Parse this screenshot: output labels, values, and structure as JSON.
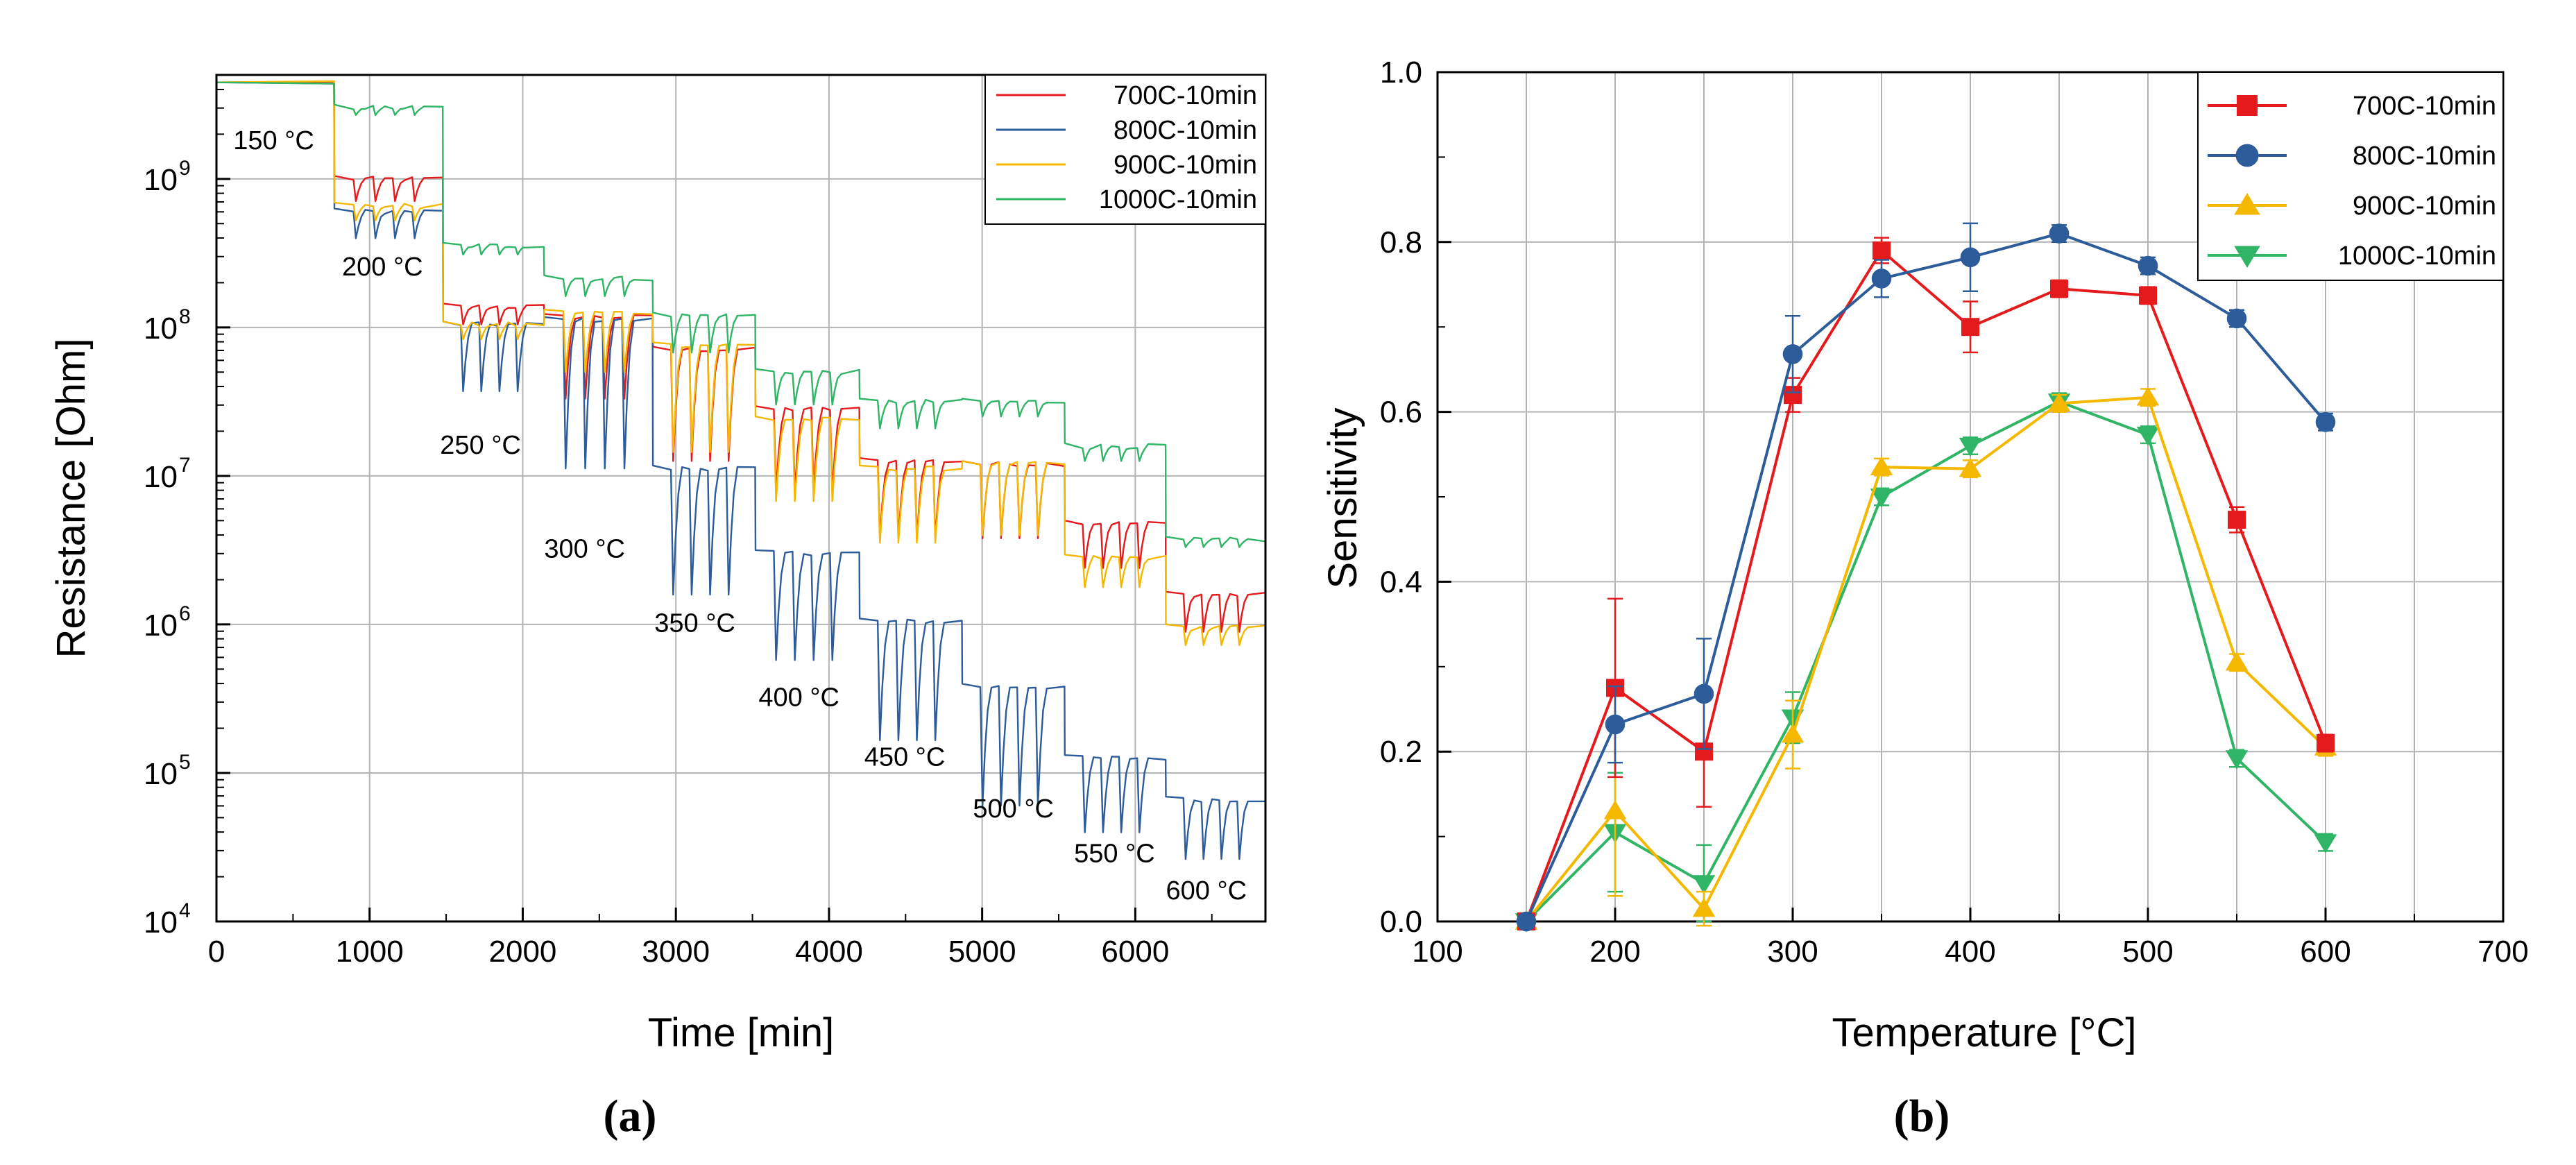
{
  "colors": {
    "c700": "#e41a1c",
    "c800": "#2d5c9a",
    "c900": "#f5b800",
    "c1000": "#2fb565",
    "grid": "#b4b4b4",
    "axis": "#000000"
  },
  "chart_data": [
    {
      "type": "line",
      "panel": "(a)",
      "xlabel": "Time [min]",
      "ylabel": "Resistance [Ohm]",
      "xlim": [
        0,
        6850
      ],
      "ylim_log10": [
        4,
        9.7
      ],
      "yscale": "log",
      "xticks": [
        0,
        1000,
        2000,
        3000,
        4000,
        5000,
        6000
      ],
      "xtick_labels": [
        "0",
        "1000",
        "2000",
        "3000",
        "4000",
        "5000",
        "6000"
      ],
      "yticks": [
        4,
        5,
        6,
        7,
        8,
        9
      ],
      "ytick_labels": [
        {
          "base": "10",
          "exp": "4"
        },
        {
          "base": "10",
          "exp": "5"
        },
        {
          "base": "10",
          "exp": "6"
        },
        {
          "base": "10",
          "exp": "7"
        },
        {
          "base": "10",
          "exp": "8"
        },
        {
          "base": "10",
          "exp": "9"
        }
      ],
      "legend_position": "top-right",
      "annotations": [
        {
          "text": "150 °C",
          "x": 110,
          "y": 9.2
        },
        {
          "text": "200 °C",
          "x": 820,
          "y": 8.35
        },
        {
          "text": "250 °C",
          "x": 1460,
          "y": 7.15
        },
        {
          "text": "300 °C",
          "x": 2140,
          "y": 6.45
        },
        {
          "text": "350 °C",
          "x": 2860,
          "y": 5.95
        },
        {
          "text": "400 °C",
          "x": 3540,
          "y": 5.45
        },
        {
          "text": "450 °C",
          "x": 4230,
          "y": 5.05
        },
        {
          "text": "500 °C",
          "x": 4940,
          "y": 4.7
        },
        {
          "text": "550 °C",
          "x": 5600,
          "y": 4.4
        },
        {
          "text": "600 °C",
          "x": 6200,
          "y": 4.15
        }
      ],
      "series": [
        {
          "name": "700C-10min",
          "color_key": "c700",
          "steps": [
            {
              "x0": 0,
              "x1": 770,
              "b": 9.65,
              "d": 0
            },
            {
              "x0": 770,
              "x1": 1480,
              "b": 9.0,
              "d": 0.15
            },
            {
              "x0": 1480,
              "x1": 2140,
              "b": 8.14,
              "d": 0.12
            },
            {
              "x0": 2140,
              "x1": 2850,
              "b": 8.07,
              "d": 0.55
            },
            {
              "x0": 2850,
              "x1": 3520,
              "b": 7.85,
              "d": 0.75
            },
            {
              "x0": 3520,
              "x1": 4200,
              "b": 7.45,
              "d": 0.55
            },
            {
              "x0": 4200,
              "x1": 4870,
              "b": 7.1,
              "d": 0.52
            },
            {
              "x0": 4870,
              "x1": 5540,
              "b": 7.08,
              "d": 0.5
            },
            {
              "x0": 5540,
              "x1": 6200,
              "b": 6.68,
              "d": 0.3
            },
            {
              "x0": 6200,
              "x1": 6850,
              "b": 6.2,
              "d": 0.25
            }
          ]
        },
        {
          "name": "800C-10min",
          "color_key": "c800",
          "steps": [
            {
              "x0": 0,
              "x1": 770,
              "b": 9.65,
              "d": 0
            },
            {
              "x0": 770,
              "x1": 1480,
              "b": 8.78,
              "d": 0.18
            },
            {
              "x0": 1480,
              "x1": 2140,
              "b": 8.02,
              "d": 0.45
            },
            {
              "x0": 2140,
              "x1": 2850,
              "b": 8.05,
              "d": 1.0
            },
            {
              "x0": 2850,
              "x1": 3520,
              "b": 7.05,
              "d": 0.85
            },
            {
              "x0": 3520,
              "x1": 4200,
              "b": 6.48,
              "d": 0.72
            },
            {
              "x0": 4200,
              "x1": 4870,
              "b": 6.02,
              "d": 0.8
            },
            {
              "x0": 4870,
              "x1": 5540,
              "b": 5.58,
              "d": 0.8
            },
            {
              "x0": 5540,
              "x1": 6200,
              "b": 5.1,
              "d": 0.5
            },
            {
              "x0": 6200,
              "x1": 6850,
              "b": 4.82,
              "d": 0.4
            }
          ]
        },
        {
          "name": "900C-10min",
          "color_key": "c900",
          "steps": [
            {
              "x0": 0,
              "x1": 770,
              "b": 9.65,
              "d": 0
            },
            {
              "x0": 770,
              "x1": 1480,
              "b": 8.82,
              "d": 0.1
            },
            {
              "x0": 1480,
              "x1": 2140,
              "b": 8.02,
              "d": 0.1
            },
            {
              "x0": 2140,
              "x1": 2850,
              "b": 8.1,
              "d": 0.4
            },
            {
              "x0": 2850,
              "x1": 3520,
              "b": 7.88,
              "d": 0.72
            },
            {
              "x0": 3520,
              "x1": 4200,
              "b": 7.38,
              "d": 0.55
            },
            {
              "x0": 4200,
              "x1": 4870,
              "b": 7.05,
              "d": 0.5
            },
            {
              "x0": 4870,
              "x1": 5540,
              "b": 7.08,
              "d": 0.48
            },
            {
              "x0": 5540,
              "x1": 6200,
              "b": 6.45,
              "d": 0.2
            },
            {
              "x0": 6200,
              "x1": 6850,
              "b": 5.98,
              "d": 0.12
            }
          ]
        },
        {
          "name": "1000C-10min",
          "color_key": "c1000",
          "steps": [
            {
              "x0": 0,
              "x1": 770,
              "b": 9.65,
              "d": 0
            },
            {
              "x0": 770,
              "x1": 1480,
              "b": 9.48,
              "d": 0.05
            },
            {
              "x0": 1480,
              "x1": 2140,
              "b": 8.55,
              "d": 0.06
            },
            {
              "x0": 2140,
              "x1": 2850,
              "b": 8.33,
              "d": 0.12
            },
            {
              "x0": 2850,
              "x1": 3520,
              "b": 8.08,
              "d": 0.25
            },
            {
              "x0": 3520,
              "x1": 4200,
              "b": 7.7,
              "d": 0.22
            },
            {
              "x0": 4200,
              "x1": 4870,
              "b": 7.5,
              "d": 0.18
            },
            {
              "x0": 4870,
              "x1": 5540,
              "b": 7.5,
              "d": 0.1
            },
            {
              "x0": 5540,
              "x1": 6200,
              "b": 7.2,
              "d": 0.1
            },
            {
              "x0": 6200,
              "x1": 6850,
              "b": 6.57,
              "d": 0.05
            }
          ]
        }
      ]
    },
    {
      "type": "line",
      "panel": "(b)",
      "xlabel": "Temperature [°C]",
      "ylabel": "Sensitivity",
      "xlim": [
        100,
        700
      ],
      "ylim": [
        0,
        1.0
      ],
      "xticks": [
        100,
        200,
        300,
        400,
        500,
        600,
        700
      ],
      "xtick_labels": [
        "100",
        "200",
        "300",
        "400",
        "500",
        "600",
        "700"
      ],
      "yticks": [
        0,
        0.2,
        0.4,
        0.6,
        0.8,
        1.0
      ],
      "ytick_labels": [
        "0.0",
        "0.2",
        "0.4",
        "0.6",
        "0.8",
        "1.0"
      ],
      "legend_position": "top-right",
      "x": [
        150,
        200,
        250,
        300,
        350,
        400,
        450,
        500,
        550,
        600
      ],
      "series": [
        {
          "name": "700C-10min",
          "color_key": "c700",
          "marker": "square",
          "values": [
            0.0,
            0.275,
            0.2,
            0.62,
            0.79,
            0.7,
            0.745,
            0.737,
            0.473,
            0.21
          ],
          "errors": [
            0.0,
            0.105,
            0.065,
            0.02,
            0.015,
            0.03,
            0.01,
            0.01,
            0.015,
            0.01
          ]
        },
        {
          "name": "800C-10min",
          "color_key": "c800",
          "marker": "circle",
          "values": [
            0.0,
            0.232,
            0.268,
            0.668,
            0.757,
            0.782,
            0.81,
            0.772,
            0.71,
            0.588
          ],
          "errors": [
            0.0,
            0.045,
            0.065,
            0.045,
            0.022,
            0.04,
            0.01,
            0.01,
            0.01,
            0.01
          ]
        },
        {
          "name": "900C-10min",
          "color_key": "c900",
          "marker": "triangle-up",
          "values": [
            0.0,
            0.13,
            0.015,
            0.22,
            0.535,
            0.533,
            0.61,
            0.617,
            0.305,
            0.205
          ],
          "errors": [
            0.0,
            0.1,
            0.02,
            0.04,
            0.01,
            0.01,
            0.01,
            0.01,
            0.01,
            0.01
          ]
        },
        {
          "name": "1000C-10min",
          "color_key": "c1000",
          "marker": "triangle-down",
          "values": [
            0.0,
            0.105,
            0.045,
            0.24,
            0.5,
            0.56,
            0.612,
            0.573,
            0.192,
            0.093
          ],
          "errors": [
            0.0,
            0.07,
            0.045,
            0.03,
            0.01,
            0.01,
            0.01,
            0.01,
            0.01,
            0.01
          ]
        }
      ]
    }
  ]
}
